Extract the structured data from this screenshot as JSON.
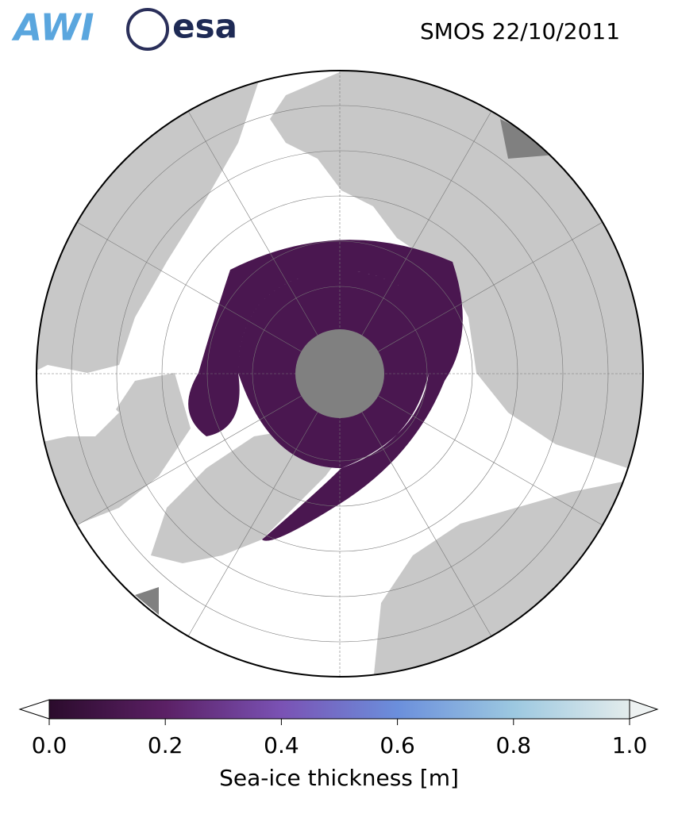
{
  "title": "SMOS 22/10/2011",
  "logos": [
    "AWI",
    "esa"
  ],
  "colorbar": {
    "label": "Sea-ice thickness [m]",
    "lim": [
      0,
      1
    ],
    "ticks": [
      {
        "value": 0,
        "label": "0.0"
      },
      {
        "value": 0.2,
        "label": "0.2"
      },
      {
        "value": 0.4,
        "label": "0.4"
      },
      {
        "value": 0.6,
        "label": "0.6"
      },
      {
        "value": 0.8,
        "label": "0.8"
      },
      {
        "value": 1,
        "label": "1.0"
      }
    ],
    "colors": [
      "#2b0b2c",
      "#5b2065",
      "#7a52b4",
      "#6b8fdc",
      "#9cc8e0",
      "#e3ecec"
    ]
  }
}
